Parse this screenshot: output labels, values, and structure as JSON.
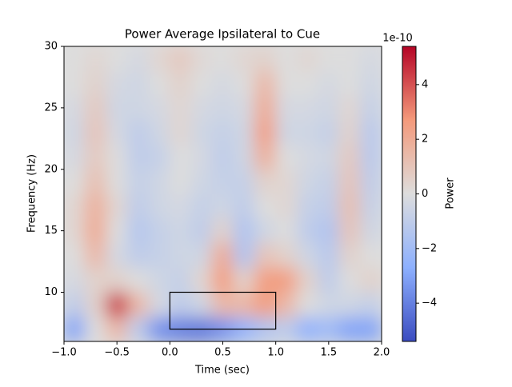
{
  "chart_data": {
    "type": "heatmap",
    "title": "Power Average Ipsilateral to Cue",
    "x_label": "Time (sec)",
    "y_label": "Frequency (Hz)",
    "colorbar_label": "Power",
    "colorbar_offset": "1e-10",
    "x": [
      -0.9,
      -0.7,
      -0.5,
      -0.3,
      -0.1,
      0.1,
      0.3,
      0.5,
      0.7,
      0.9,
      1.1,
      1.3,
      1.5,
      1.7,
      1.9
    ],
    "y": [
      7,
      9,
      11,
      13,
      15,
      17,
      19,
      21,
      23,
      25,
      27,
      29
    ],
    "z": [
      [
        -3,
        0,
        1.5,
        -1,
        -3.5,
        -4,
        -4.2,
        -3.5,
        -2.5,
        -1.5,
        -1,
        -2.5,
        -2,
        -3,
        -3
      ],
      [
        -1,
        0.5,
        4.5,
        1.5,
        -0.3,
        -1,
        -0.5,
        1.5,
        1.5,
        2.5,
        1.5,
        0,
        -0.5,
        -0.5,
        -0.8
      ],
      [
        -0.3,
        0.5,
        0.5,
        0,
        -0.5,
        -0.8,
        0.3,
        2.5,
        0.5,
        2.5,
        2.5,
        0.5,
        -1,
        0,
        0.5
      ],
      [
        0,
        1.5,
        -0.3,
        -1,
        -0.8,
        -0.5,
        -0.5,
        2,
        -1.5,
        1,
        0.5,
        -0.5,
        -1.2,
        0.5,
        0
      ],
      [
        0.3,
        2,
        0,
        -1.3,
        -0.8,
        -0.5,
        -1,
        0.5,
        -1.5,
        -0.5,
        0,
        -1,
        -1.5,
        1,
        -0.5
      ],
      [
        0.3,
        1.8,
        0.3,
        -1,
        -0.5,
        -0.3,
        -0.8,
        -0.5,
        -1,
        0,
        0.3,
        -0.8,
        -1,
        1.2,
        -0.8
      ],
      [
        0,
        1.2,
        0,
        -0.8,
        -0.5,
        0,
        -0.5,
        -0.8,
        -0.8,
        0.5,
        0.3,
        -0.5,
        -0.8,
        1,
        -1
      ],
      [
        -0.3,
        0.8,
        0,
        -1,
        -0.8,
        0,
        -0.3,
        -1,
        -0.5,
        1.8,
        0,
        -0.3,
        -0.5,
        0.8,
        -1.2
      ],
      [
        -0.5,
        1,
        -0.3,
        -1,
        -0.5,
        0.3,
        -0.5,
        -0.8,
        -0.5,
        2.5,
        -0.5,
        -0.5,
        -0.8,
        0.5,
        -1.2
      ],
      [
        -0.3,
        0.8,
        -0.5,
        -0.5,
        -0.3,
        0.3,
        -0.3,
        -0.5,
        -0.3,
        2,
        -0.3,
        -0.3,
        -0.5,
        0.3,
        -0.8
      ],
      [
        0,
        0.5,
        -0.3,
        -0.5,
        0,
        0.5,
        0,
        -0.3,
        0,
        1.5,
        0,
        0,
        -0.3,
        0,
        -0.5
      ],
      [
        0,
        0.3,
        0,
        -0.3,
        0.3,
        0.8,
        0.2,
        0,
        0.3,
        0.5,
        0,
        0.3,
        0,
        0,
        -0.3
      ]
    ],
    "xlim": [
      -1,
      2
    ],
    "xticks": [
      {
        "value": -1,
        "label": "−1.0"
      },
      {
        "value": -0.5,
        "label": "−0.5"
      },
      {
        "value": 0,
        "label": "0.0"
      },
      0.5,
      {
        "value": 1,
        "label": "1.0"
      },
      1.5,
      {
        "value": 2,
        "label": "2.0"
      }
    ],
    "ylim": [
      6,
      30
    ],
    "yticks": [
      10,
      15,
      20,
      25,
      30
    ],
    "clim": [
      -5.4,
      5.4
    ],
    "cticks": [
      {
        "value": -4,
        "label": "−4"
      },
      {
        "value": -2,
        "label": "−2"
      },
      0,
      2,
      4
    ],
    "colormap": "coolwarm",
    "rectangle": {
      "x": [
        0,
        1
      ],
      "y": [
        7,
        10
      ],
      "color": "#000000"
    }
  }
}
